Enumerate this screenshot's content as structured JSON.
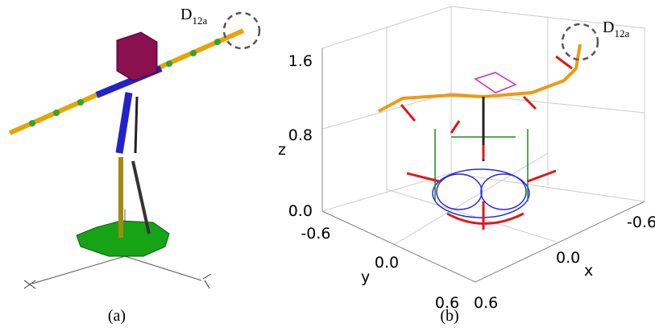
{
  "panel_a": {
    "marker": {
      "main": "D",
      "sub": "12a"
    },
    "caption": "(a)"
  },
  "panel_b": {
    "marker": {
      "main": "D",
      "sub": "12a"
    },
    "caption": "(b)",
    "axes": {
      "z": {
        "label": "z",
        "ticks": [
          "1.6",
          "0.8",
          "0.0"
        ]
      },
      "y": {
        "label": "y",
        "ticks": [
          "-0.6",
          "0.0",
          "0.6"
        ]
      },
      "x": {
        "label": "x",
        "ticks": [
          "0.6",
          "0.0",
          "-0.6"
        ]
      }
    }
  }
}
